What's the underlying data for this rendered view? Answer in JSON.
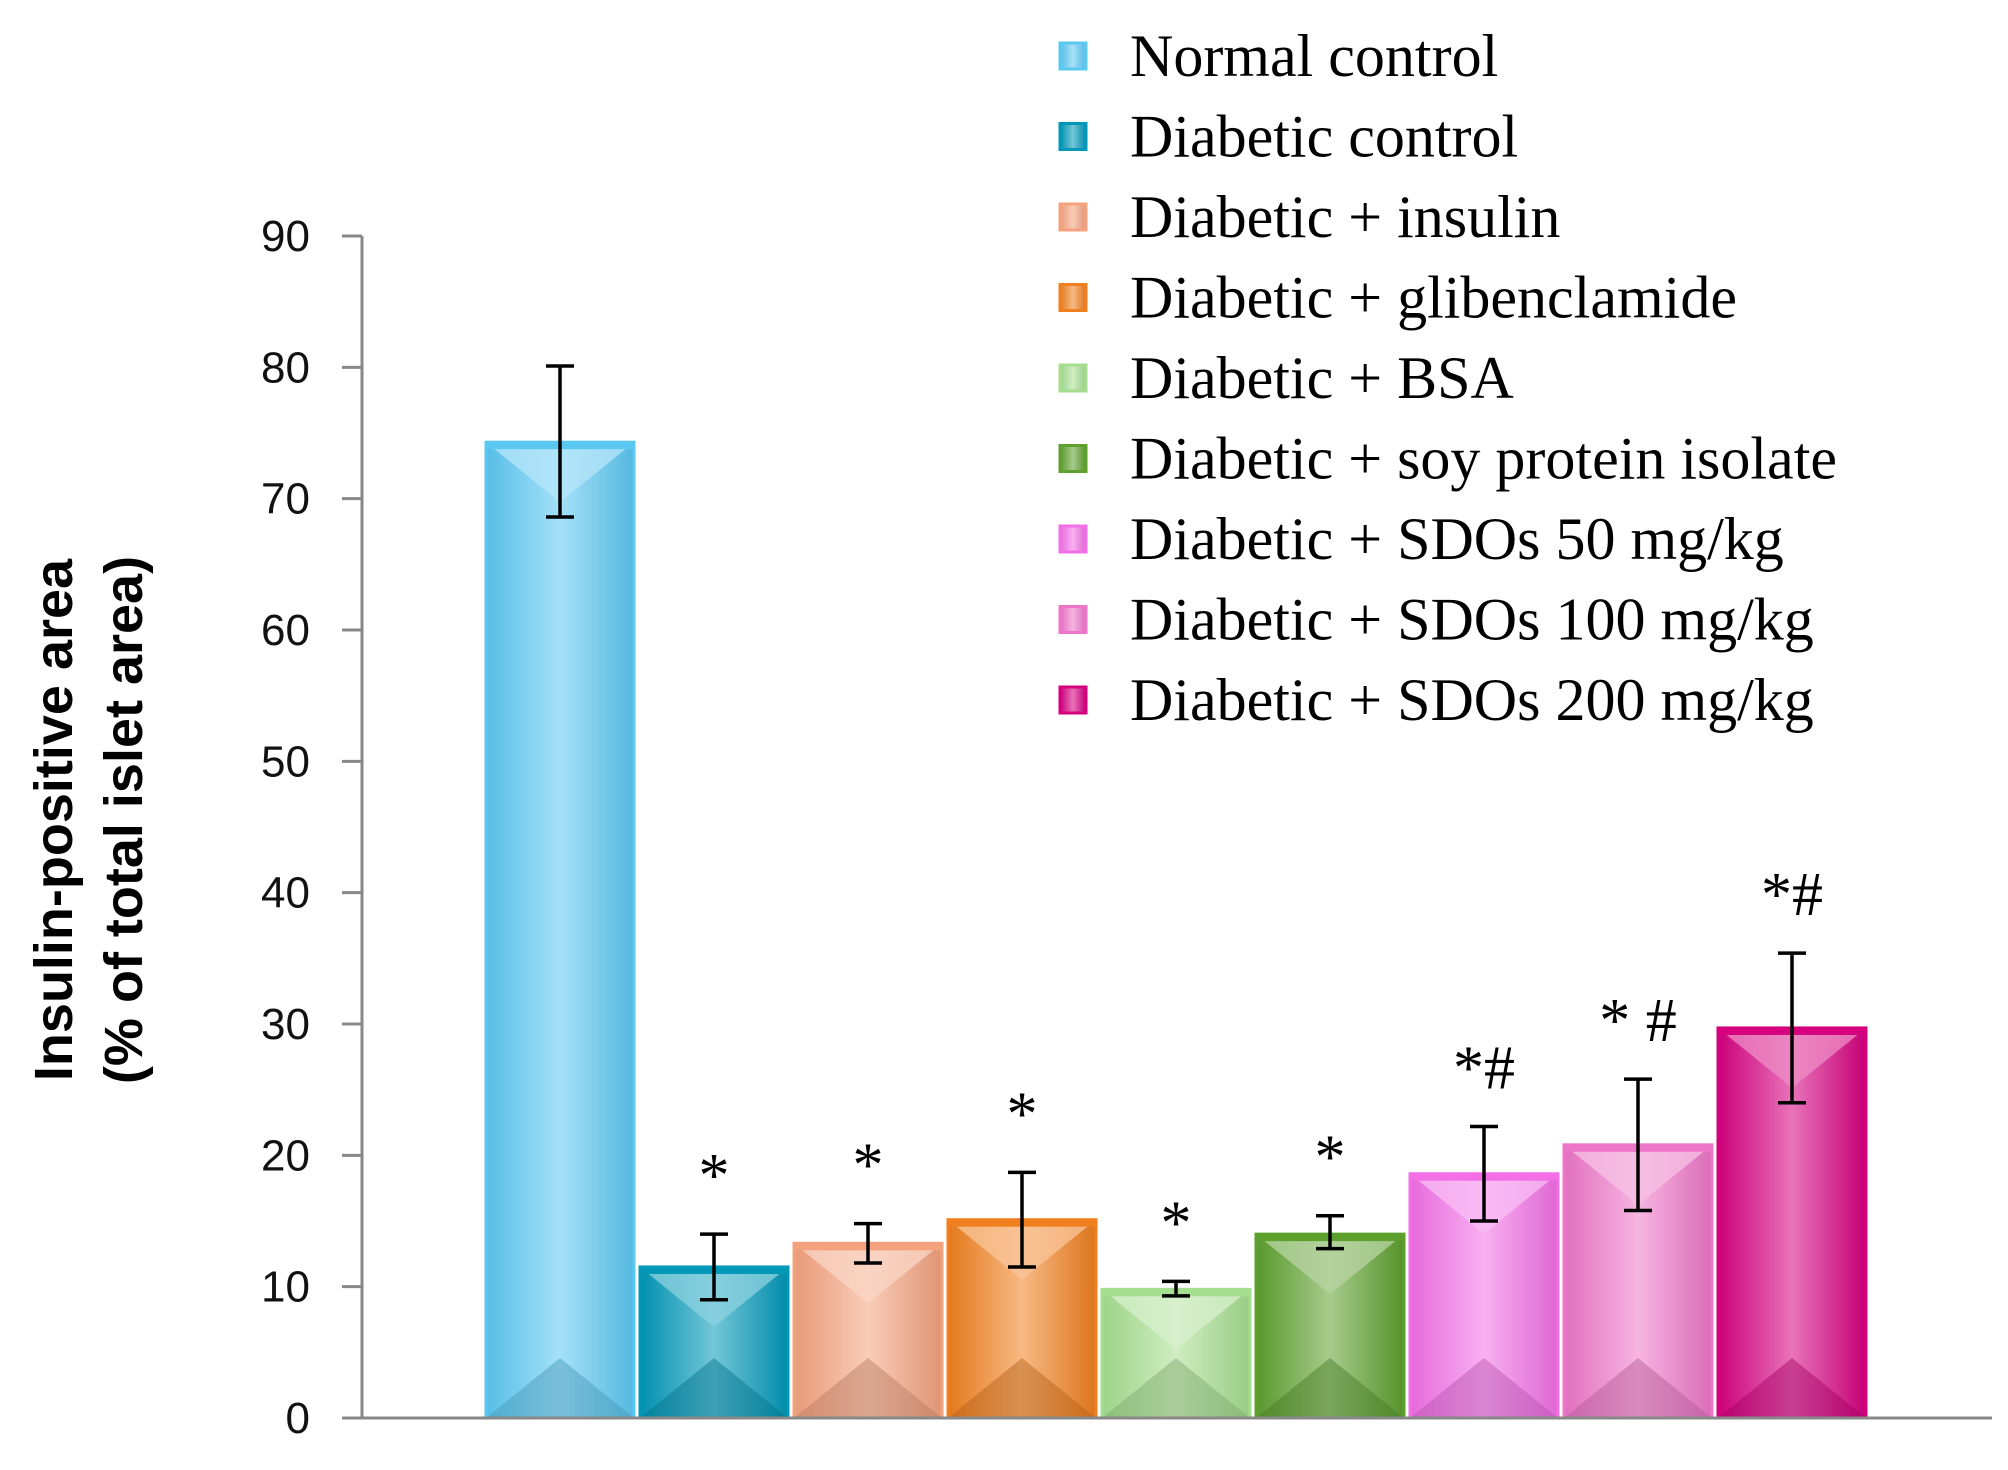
{
  "chart_data": {
    "type": "bar",
    "title": "",
    "xlabel": "",
    "ylabel_lines": [
      "Insulin-positive area",
      "(% of total islet area)"
    ],
    "ylim": [
      0,
      90
    ],
    "yticks": [
      0,
      10,
      20,
      30,
      40,
      50,
      60,
      70,
      80,
      90
    ],
    "grid": false,
    "legend_position": "top-right",
    "series": [
      {
        "name": "Normal control",
        "value": 74.3,
        "err_low": 68.6,
        "err_high": 80.1,
        "annotation": "",
        "color": "#5BC8F2"
      },
      {
        "name": "Diabetic control",
        "value": 11.5,
        "err_low": 9.0,
        "err_high": 14.0,
        "annotation": "*",
        "color": "#0098B8"
      },
      {
        "name": "Diabetic + insulin",
        "value": 13.3,
        "err_low": 11.8,
        "err_high": 14.8,
        "annotation": "*",
        "color": "#F4A27E"
      },
      {
        "name": "Diabetic + glibenclamide",
        "value": 15.1,
        "err_low": 11.5,
        "err_high": 18.7,
        "annotation": "*",
        "color": "#F07F1E"
      },
      {
        "name": "Diabetic + BSA",
        "value": 9.8,
        "err_low": 9.3,
        "err_high": 10.4,
        "annotation": "*",
        "color": "#A6DE8F"
      },
      {
        "name": "Diabetic + soy protein isolate",
        "value": 14.0,
        "err_low": 12.9,
        "err_high": 15.4,
        "annotation": "*",
        "color": "#5EA02E"
      },
      {
        "name": "Diabetic + SDOs 50 mg/kg",
        "value": 18.6,
        "err_low": 15.0,
        "err_high": 22.2,
        "annotation": "*#",
        "color": "#F26FE6"
      },
      {
        "name": "Diabetic + SDOs 100 mg/kg",
        "value": 20.8,
        "err_low": 15.8,
        "err_high": 25.8,
        "annotation": "* #",
        "color": "#EE76C8"
      },
      {
        "name": "Diabetic + SDOs 200 mg/kg",
        "value": 29.7,
        "err_low": 24.0,
        "err_high": 35.4,
        "annotation": "*#",
        "color": "#D6007F"
      }
    ]
  }
}
